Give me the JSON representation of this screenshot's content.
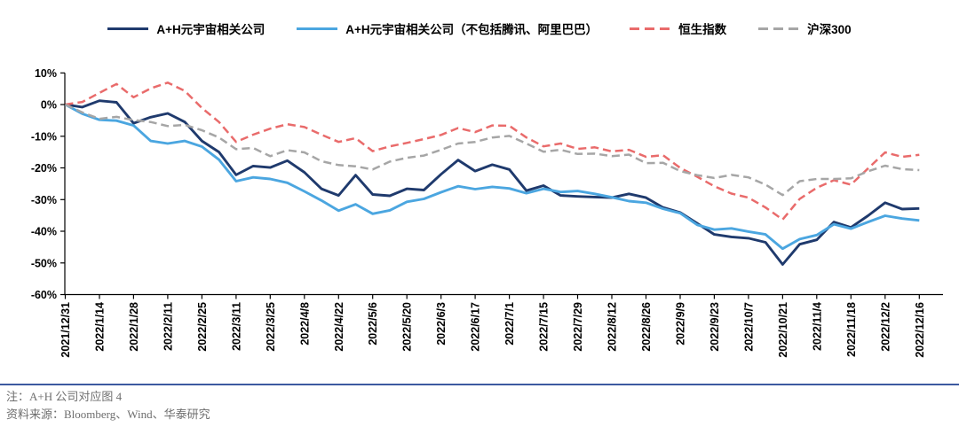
{
  "chart_data": {
    "type": "line",
    "title": "",
    "xlabel": "",
    "ylabel": "",
    "ylim": [
      -60,
      10
    ],
    "y_ticks": [
      10,
      0,
      -10,
      -20,
      -30,
      -40,
      -50,
      -60
    ],
    "y_tick_suffix": "%",
    "x_tick_step": 2,
    "grid": false,
    "legend_position": "top-center",
    "x": [
      "2021/12/31",
      "2022/1/7",
      "2022/1/14",
      "2022/1/21",
      "2022/1/28",
      "2022/2/4",
      "2022/2/11",
      "2022/2/18",
      "2022/2/25",
      "2022/3/4",
      "2022/3/11",
      "2022/3/18",
      "2022/3/25",
      "2022/4/1",
      "2022/4/8",
      "2022/4/15",
      "2022/4/22",
      "2022/4/29",
      "2022/5/6",
      "2022/5/13",
      "2022/5/20",
      "2022/5/27",
      "2022/6/3",
      "2022/6/10",
      "2022/6/17",
      "2022/6/24",
      "2022/7/1",
      "2022/7/8",
      "2022/7/15",
      "2022/7/22",
      "2022/7/29",
      "2022/8/5",
      "2022/8/12",
      "2022/8/19",
      "2022/8/26",
      "2022/9/2",
      "2022/9/9",
      "2022/9/16",
      "2022/9/23",
      "2022/9/30",
      "2022/10/7",
      "2022/10/14",
      "2022/10/21",
      "2022/10/28",
      "2022/11/4",
      "2022/11/11",
      "2022/11/18",
      "2022/11/25",
      "2022/12/2",
      "2022/12/9",
      "2022/12/16"
    ],
    "series": [
      {
        "id": "ah-metaverse",
        "name": "A+H元宇宙相关公司",
        "color": "#1f3a6d",
        "style": "solid",
        "values": [
          0,
          -0.8,
          1.2,
          0.7,
          -5.9,
          -4.0,
          -2.8,
          -5.5,
          -11.5,
          -15.0,
          -22.2,
          -19.4,
          -19.9,
          -17.7,
          -21.4,
          -26.6,
          -28.7,
          -22.3,
          -28.4,
          -28.8,
          -26.6,
          -27.0,
          -22.0,
          -17.5,
          -21.0,
          -19.0,
          -20.5,
          -27.2,
          -25.6,
          -28.7,
          -29.0,
          -29.2,
          -29.4,
          -28.2,
          -29.4,
          -32.5,
          -34.1,
          -37.5,
          -41.0,
          -41.8,
          -42.2,
          -43.5,
          -50.5,
          -44.1,
          -42.7,
          -37.1,
          -38.8,
          -35.1,
          -31.0,
          -33.0,
          -32.8
        ]
      },
      {
        "id": "ah-metaverse-ex-tencent-alibaba",
        "name": "A+H元宇宙相关公司（不包括腾讯、阿里巴巴）",
        "color": "#4ba6e0",
        "style": "solid",
        "values": [
          0,
          -2.9,
          -4.8,
          -5.1,
          -6.6,
          -11.5,
          -12.3,
          -11.5,
          -13.3,
          -17.4,
          -24.2,
          -23.0,
          -23.5,
          -24.7,
          -27.4,
          -30.3,
          -33.5,
          -31.5,
          -34.5,
          -33.4,
          -30.7,
          -29.8,
          -27.7,
          -25.8,
          -26.7,
          -26.0,
          -26.5,
          -28.0,
          -26.6,
          -27.6,
          -27.3,
          -28.2,
          -29.3,
          -30.5,
          -31.0,
          -32.9,
          -34.3,
          -38.0,
          -39.5,
          -39.1,
          -40.1,
          -41.0,
          -45.5,
          -42.5,
          -41.2,
          -37.8,
          -39.2,
          -37.1,
          -35.1,
          -36.0,
          -36.6
        ]
      },
      {
        "id": "hang-seng-index",
        "name": "恒生指数",
        "color": "#e96b6b",
        "style": "dashed",
        "values": [
          0,
          0.8,
          3.7,
          6.5,
          2.3,
          5.1,
          6.9,
          4.3,
          -1.1,
          -5.5,
          -11.8,
          -9.5,
          -7.6,
          -6.2,
          -7.1,
          -9.5,
          -11.8,
          -10.6,
          -14.7,
          -13.2,
          -12.1,
          -10.9,
          -9.6,
          -7.4,
          -8.7,
          -6.6,
          -6.7,
          -10.4,
          -13.2,
          -12.3,
          -14.0,
          -13.5,
          -14.8,
          -14.3,
          -16.5,
          -16.0,
          -20.0,
          -22.8,
          -25.8,
          -28.1,
          -29.4,
          -32.5,
          -36.3,
          -29.8,
          -26.3,
          -23.9,
          -25.3,
          -20.2,
          -15.1,
          -16.5,
          -15.9
        ]
      },
      {
        "id": "csi300",
        "name": "沪深300",
        "color": "#a6a6a6",
        "style": "dashed",
        "values": [
          0,
          -2.5,
          -4.5,
          -3.9,
          -4.9,
          -5.5,
          -6.8,
          -6.4,
          -8.1,
          -10.4,
          -14.1,
          -13.7,
          -16.3,
          -14.4,
          -15.1,
          -17.9,
          -19.1,
          -19.5,
          -20.5,
          -18.0,
          -16.8,
          -16.1,
          -14.3,
          -12.3,
          -11.8,
          -10.4,
          -9.9,
          -12.3,
          -14.9,
          -14.3,
          -15.6,
          -15.5,
          -16.3,
          -15.8,
          -18.5,
          -18.4,
          -21.0,
          -22.3,
          -23.2,
          -22.2,
          -23.0,
          -25.3,
          -28.6,
          -24.2,
          -23.5,
          -23.5,
          -23.3,
          -21.1,
          -19.3,
          -20.4,
          -20.7
        ]
      }
    ]
  },
  "footer": {
    "note": "注：A+H 公司对应图 4",
    "source": "资料来源：Bloomberg、Wind、华泰研究"
  }
}
